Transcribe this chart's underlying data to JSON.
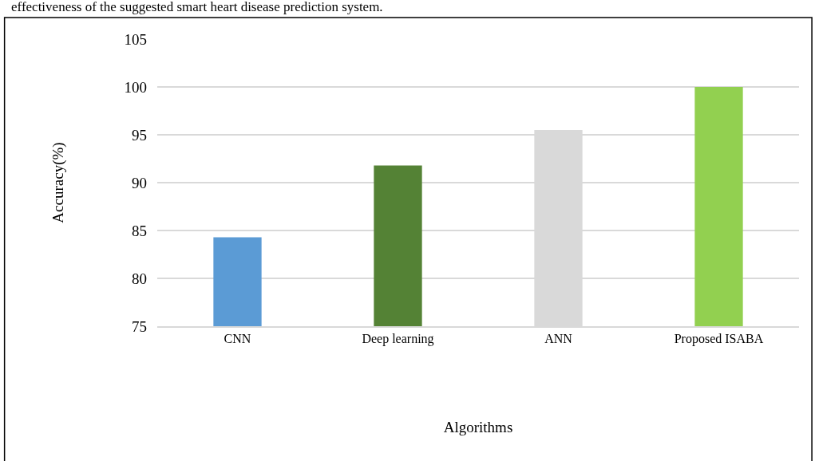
{
  "chart_data": {
    "type": "bar",
    "xlabel": "Algorithms",
    "ylabel": "Accuracy(%)",
    "annotations": [
      "effectiveness of the suggested smart heart disease prediction system."
    ],
    "categories": [
      "CNN",
      "Deep learning",
      "ANN",
      "Proposed ISABA"
    ],
    "values": [
      84.3,
      91.8,
      95.5,
      100
    ],
    "colors": [
      "#5b9bd5",
      "#548235",
      "#d9d9d9",
      "#92d050"
    ],
    "ylim": [
      75,
      105
    ],
    "yticks": [
      75,
      80,
      85,
      90,
      95,
      100,
      105
    ],
    "grid": "y",
    "legend": false
  }
}
